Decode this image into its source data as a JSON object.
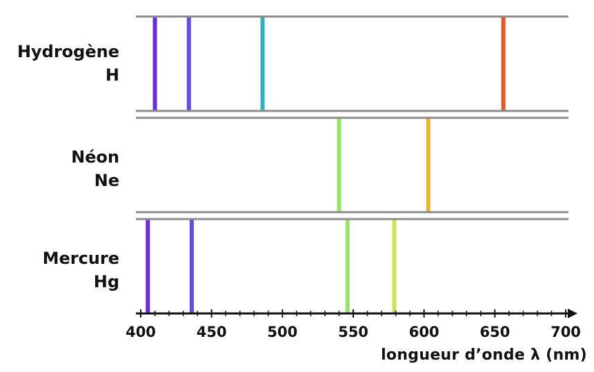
{
  "chart_data": {
    "type": "spectral-lines",
    "xlabel": "longueur d’onde λ (nm)",
    "xlim": [
      400,
      700
    ],
    "ticks": [
      400,
      450,
      500,
      550,
      600,
      650,
      700
    ],
    "elements": [
      {
        "name": "Hydrogène",
        "symbol": "H",
        "lines": [
          {
            "nm": 410,
            "color": "#6a2be0"
          },
          {
            "nm": 434,
            "color": "#5a4ef0"
          },
          {
            "nm": 486,
            "color": "#2fb2bc"
          },
          {
            "nm": 656,
            "color": "#ee5422"
          }
        ]
      },
      {
        "name": "Néon",
        "symbol": "Ne",
        "lines": [
          {
            "nm": 540,
            "color": "#95e46a"
          },
          {
            "nm": 603,
            "color": "#f0b42c"
          }
        ]
      },
      {
        "name": "Mercure",
        "symbol": "Hg",
        "lines": [
          {
            "nm": 405,
            "color": "#6a2be0"
          },
          {
            "nm": 436,
            "color": "#5a4ef0"
          },
          {
            "nm": 546,
            "color": "#95e46a"
          },
          {
            "nm": 579,
            "color": "#c8e650"
          }
        ]
      }
    ]
  }
}
